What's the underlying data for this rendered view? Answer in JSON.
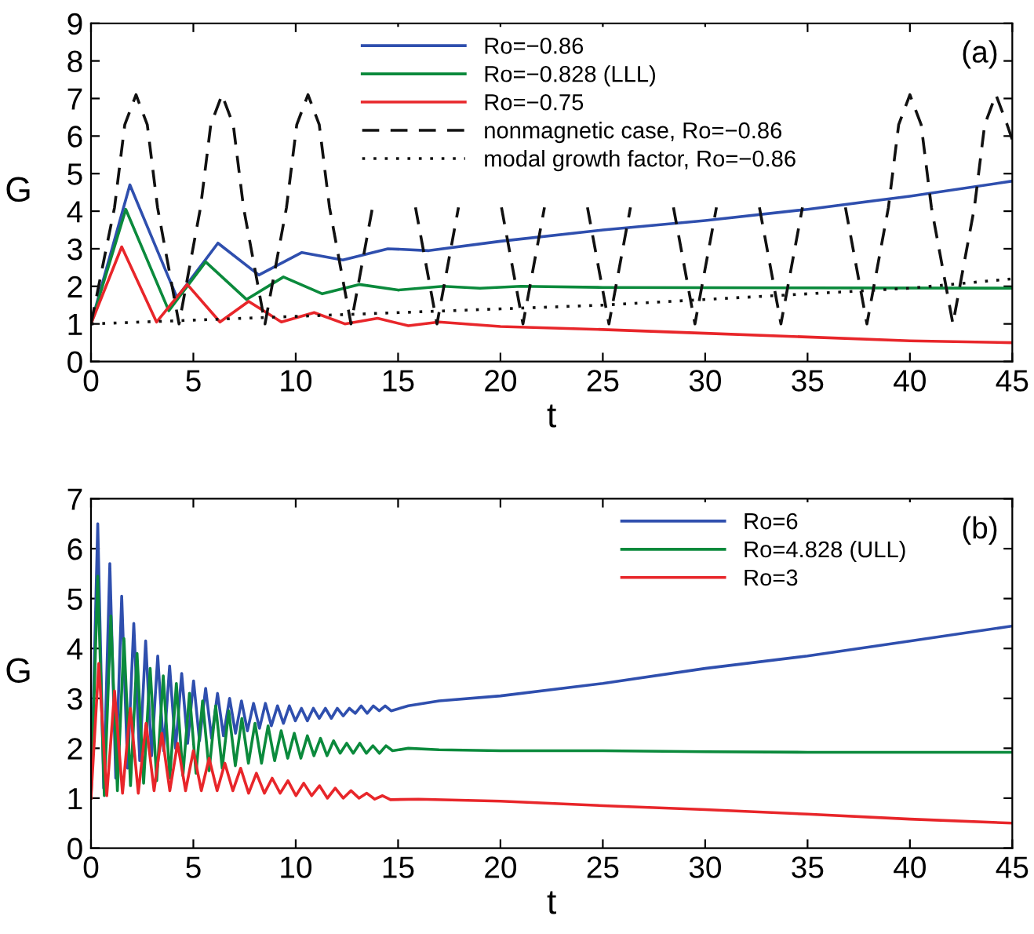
{
  "chart_data": [
    {
      "type": "line",
      "xlabel": "t",
      "ylabel": "G",
      "xlim": [
        0,
        45
      ],
      "ylim": [
        0,
        9
      ],
      "xticks": [
        0,
        5,
        10,
        15,
        20,
        25,
        30,
        35,
        40,
        45
      ],
      "yticks": [
        0,
        1,
        2,
        3,
        4,
        5,
        6,
        7,
        8,
        9
      ],
      "grid": false,
      "legend": "top",
      "annotations": [
        "(a)"
      ],
      "series": [
        {
          "name": "Ro=−0.86",
          "color": "#2f4fae",
          "line_style": "solid",
          "x": [
            0,
            1.9,
            4.2,
            6.2,
            8.2,
            10.3,
            12.3,
            14.5,
            16.5,
            20,
            25,
            30,
            35,
            40,
            45
          ],
          "values": [
            1,
            4.7,
            1.7,
            3.15,
            2.3,
            2.9,
            2.7,
            3.0,
            2.95,
            3.2,
            3.5,
            3.75,
            4.05,
            4.4,
            4.8
          ]
        },
        {
          "name": "Ro=−0.828 (LLL)",
          "color": "#0b8a3c",
          "line_style": "solid",
          "x": [
            0,
            1.7,
            3.8,
            5.6,
            7.6,
            9.4,
            11.3,
            13.1,
            15,
            17.2,
            19,
            21,
            25,
            45
          ],
          "values": [
            1,
            4.05,
            1.35,
            2.65,
            1.65,
            2.25,
            1.8,
            2.05,
            1.9,
            2.0,
            1.95,
            2.0,
            1.97,
            1.95
          ]
        },
        {
          "name": "Ro=−0.75",
          "color": "#e8262a",
          "line_style": "solid",
          "x": [
            0,
            1.5,
            3.2,
            4.7,
            6.3,
            7.7,
            9.3,
            10.9,
            12.4,
            14,
            15.5,
            17,
            20,
            25,
            30,
            35,
            40,
            45
          ],
          "values": [
            1,
            3.05,
            1.05,
            2.05,
            1.05,
            1.6,
            1.05,
            1.3,
            1.0,
            1.15,
            0.95,
            1.05,
            0.93,
            0.85,
            0.75,
            0.65,
            0.55,
            0.5
          ]
        },
        {
          "name": "nonmagnetic case, Ro=−0.86",
          "color": "#111111",
          "line_style": "dashed",
          "x": [
            0,
            1.15,
            1.65,
            2.2,
            2.75,
            3.25,
            4.3,
            5.35,
            5.85,
            6.4,
            6.95,
            7.45,
            8.5,
            9.55,
            10.05,
            10.6,
            11.15,
            11.65,
            12.7,
            13.75,
            14.25,
            14.8,
            15.35,
            15.85,
            16.9,
            17.95,
            18.45,
            19.0,
            19.55,
            20.05,
            21.1,
            22.15,
            22.65,
            23.2,
            23.75,
            24.25,
            25.3,
            26.35,
            26.85,
            27.4,
            27.95,
            28.45,
            29.5,
            30.55,
            31.05,
            31.6,
            32.15,
            32.65,
            33.7,
            34.75,
            35.25,
            35.8,
            36.35,
            36.85,
            37.9,
            38.95,
            39.45,
            40.0,
            40.55,
            41.05,
            42.1,
            43.15,
            43.65,
            44.2,
            44.75,
            45
          ],
          "values": [
            1,
            4.1,
            6.3,
            7.1,
            6.3,
            4.1,
            1,
            4.1,
            6.3,
            7.1,
            6.3,
            4.1,
            1,
            4.1,
            6.3,
            7.1,
            6.3,
            4.1,
            1,
            4.1,
            null,
            null,
            null,
            4.1,
            1,
            4.1,
            null,
            null,
            null,
            4.1,
            1,
            4.1,
            null,
            null,
            null,
            4.1,
            1,
            4.1,
            null,
            null,
            null,
            4.1,
            1,
            4.1,
            null,
            null,
            null,
            4.1,
            1,
            4.1,
            null,
            null,
            null,
            4.1,
            1,
            4.1,
            6.3,
            7.1,
            6.3,
            4.1,
            1,
            4.1,
            6.3,
            7.1,
            6.3,
            5.9
          ]
        },
        {
          "name": "modal growth factor, Ro=−0.86",
          "color": "#111111",
          "line_style": "dotted",
          "x": [
            0,
            5,
            10,
            15,
            20,
            25,
            30,
            35,
            40,
            45
          ],
          "values": [
            1,
            1.1,
            1.2,
            1.3,
            1.4,
            1.5,
            1.65,
            1.8,
            1.95,
            2.2
          ]
        }
      ]
    },
    {
      "type": "line",
      "xlabel": "t",
      "ylabel": "G",
      "xlim": [
        0,
        45
      ],
      "ylim": [
        0,
        7
      ],
      "xticks": [
        0,
        5,
        10,
        15,
        20,
        25,
        30,
        35,
        40,
        45
      ],
      "yticks": [
        0,
        1,
        2,
        3,
        4,
        5,
        6,
        7
      ],
      "grid": false,
      "legend": "top right",
      "annotations": [
        "(b)"
      ],
      "series": [
        {
          "name": "Ro=6",
          "color": "#2f4fae",
          "line_style": "solid",
          "x": [
            0,
            0.33,
            0.62,
            0.92,
            1.21,
            1.5,
            1.79,
            2.09,
            2.38,
            2.67,
            2.96,
            3.26,
            3.55,
            3.84,
            4.13,
            4.43,
            4.72,
            5.01,
            5.3,
            5.6,
            5.89,
            6.18,
            6.47,
            6.77,
            7.06,
            7.35,
            7.64,
            7.94,
            8.23,
            8.52,
            8.81,
            9.11,
            9.4,
            9.69,
            9.98,
            10.28,
            10.57,
            10.86,
            11.15,
            11.45,
            11.74,
            12.03,
            12.32,
            12.62,
            12.91,
            13.2,
            13.49,
            13.79,
            14.08,
            14.37,
            14.66,
            15.5,
            17,
            20,
            25,
            30,
            35,
            40,
            45
          ],
          "values": [
            1,
            6.5,
            1.2,
            5.7,
            1.4,
            5.05,
            1.6,
            4.5,
            1.75,
            4.15,
            1.85,
            3.85,
            1.95,
            3.65,
            2.0,
            3.5,
            2.1,
            3.35,
            2.15,
            3.2,
            2.2,
            3.1,
            2.25,
            3.0,
            2.3,
            2.95,
            2.35,
            2.9,
            2.4,
            2.9,
            2.45,
            2.85,
            2.5,
            2.85,
            2.55,
            2.8,
            2.55,
            2.8,
            2.6,
            2.8,
            2.6,
            2.8,
            2.65,
            2.8,
            2.7,
            2.85,
            2.7,
            2.85,
            2.75,
            2.85,
            2.75,
            2.85,
            2.95,
            3.05,
            3.3,
            3.6,
            3.85,
            4.15,
            4.45
          ]
        },
        {
          "name": "Ro=4.828 (ULL)",
          "color": "#0b8a3c",
          "line_style": "solid",
          "x": [
            0,
            0.33,
            0.65,
            0.97,
            1.29,
            1.61,
            1.93,
            2.25,
            2.57,
            2.89,
            3.21,
            3.53,
            3.85,
            4.17,
            4.49,
            4.81,
            5.13,
            5.45,
            5.77,
            6.09,
            6.41,
            6.73,
            7.05,
            7.37,
            7.69,
            8.01,
            8.33,
            8.65,
            8.97,
            9.29,
            9.61,
            9.93,
            10.25,
            10.57,
            10.89,
            11.21,
            11.53,
            11.85,
            12.17,
            12.49,
            12.81,
            13.13,
            13.45,
            13.77,
            14.09,
            14.41,
            14.73,
            15.5,
            17,
            20,
            25,
            30,
            35,
            40,
            45
          ],
          "values": [
            1,
            5.45,
            1.05,
            4.65,
            1.15,
            4.2,
            1.25,
            3.9,
            1.3,
            3.6,
            1.35,
            3.45,
            1.4,
            3.3,
            1.45,
            3.1,
            1.5,
            2.95,
            1.55,
            2.85,
            1.6,
            2.75,
            1.65,
            2.6,
            1.7,
            2.5,
            1.7,
            2.45,
            1.75,
            2.35,
            1.8,
            2.3,
            1.8,
            2.25,
            1.85,
            2.2,
            1.85,
            2.15,
            1.9,
            2.1,
            1.9,
            2.1,
            1.9,
            2.05,
            1.9,
            2.05,
            1.95,
            2.0,
            1.97,
            1.95,
            1.95,
            1.93,
            1.92,
            1.92,
            1.92
          ]
        },
        {
          "name": "Ro=3",
          "color": "#e8262a",
          "line_style": "solid",
          "x": [
            0,
            0.38,
            0.77,
            1.15,
            1.54,
            1.92,
            2.31,
            2.69,
            3.08,
            3.46,
            3.85,
            4.23,
            4.62,
            5.0,
            5.39,
            5.77,
            6.16,
            6.54,
            6.93,
            7.31,
            7.7,
            8.08,
            8.47,
            8.85,
            9.24,
            9.62,
            10.01,
            10.39,
            10.78,
            11.16,
            11.55,
            11.93,
            12.32,
            12.7,
            13.09,
            13.47,
            13.86,
            14.24,
            14.63,
            16,
            20,
            25,
            30,
            35,
            40,
            45
          ],
          "values": [
            1,
            3.7,
            1.05,
            3.15,
            1.1,
            2.8,
            1.1,
            2.5,
            1.15,
            2.3,
            1.15,
            2.1,
            1.15,
            1.95,
            1.15,
            1.8,
            1.15,
            1.7,
            1.15,
            1.6,
            1.1,
            1.5,
            1.1,
            1.4,
            1.1,
            1.35,
            1.05,
            1.3,
            1.05,
            1.25,
            1.0,
            1.2,
            1.0,
            1.15,
            1.0,
            1.1,
            0.98,
            1.05,
            0.97,
            0.98,
            0.94,
            0.85,
            0.77,
            0.68,
            0.58,
            0.5
          ]
        }
      ]
    }
  ]
}
